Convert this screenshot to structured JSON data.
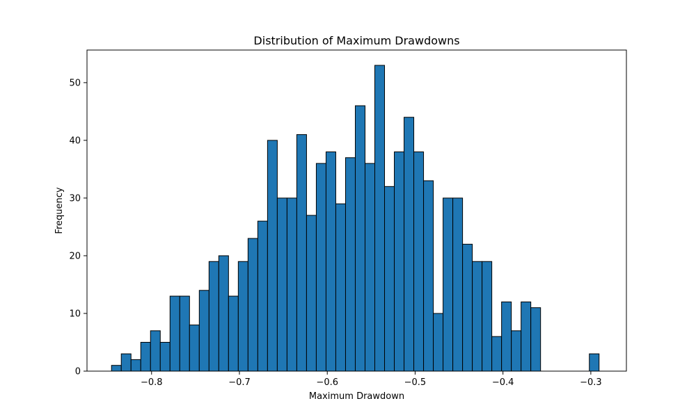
{
  "chart_data": {
    "type": "bar",
    "title": "Distribution of Maximum Drawdowns",
    "xlabel": "Maximum Drawdown",
    "ylabel": "Frequency",
    "xlim": [
      -0.8735,
      -0.2595
    ],
    "ylim": [
      0,
      55.65
    ],
    "x_ticks": [
      -0.8,
      -0.7,
      -0.6,
      -0.5,
      -0.4,
      -0.3
    ],
    "x_tick_labels": [
      "−0.8",
      "−0.7",
      "−0.6",
      "−0.5",
      "−0.4",
      "−0.3"
    ],
    "y_ticks": [
      0,
      10,
      20,
      30,
      40,
      50
    ],
    "y_tick_labels": [
      "0",
      "10",
      "20",
      "30",
      "40",
      "50"
    ],
    "grid": false,
    "bin_edges": [
      -0.8456,
      -0.8345,
      -0.8234,
      -0.8123,
      -0.8012,
      -0.7901,
      -0.779,
      -0.7679,
      -0.7568,
      -0.7457,
      -0.7346,
      -0.7235,
      -0.7124,
      -0.7013,
      -0.6902,
      -0.6791,
      -0.668,
      -0.6569,
      -0.6458,
      -0.6347,
      -0.6236,
      -0.6125,
      -0.6014,
      -0.5903,
      -0.5792,
      -0.5681,
      -0.557,
      -0.5459,
      -0.5348,
      -0.5237,
      -0.5126,
      -0.5015,
      -0.4904,
      -0.4793,
      -0.4682,
      -0.4571,
      -0.446,
      -0.4349,
      -0.4238,
      -0.4127,
      -0.4016,
      -0.3905,
      -0.3794,
      -0.3683,
      -0.3572,
      -0.3461,
      -0.335,
      -0.3239,
      -0.3128,
      -0.3017,
      -0.2906
    ],
    "values": [
      1,
      3,
      2,
      5,
      7,
      5,
      13,
      13,
      8,
      14,
      19,
      20,
      13,
      19,
      23,
      26,
      40,
      30,
      30,
      41,
      27,
      36,
      38,
      29,
      37,
      46,
      36,
      53,
      32,
      38,
      44,
      38,
      33,
      10,
      30,
      30,
      22,
      19,
      19,
      6,
      12,
      7,
      12,
      11,
      0,
      0,
      0,
      0,
      0,
      3
    ],
    "colors": {
      "bar_fill": "#1f77b4",
      "bar_edge": "#000000",
      "axis": "#000000"
    }
  }
}
